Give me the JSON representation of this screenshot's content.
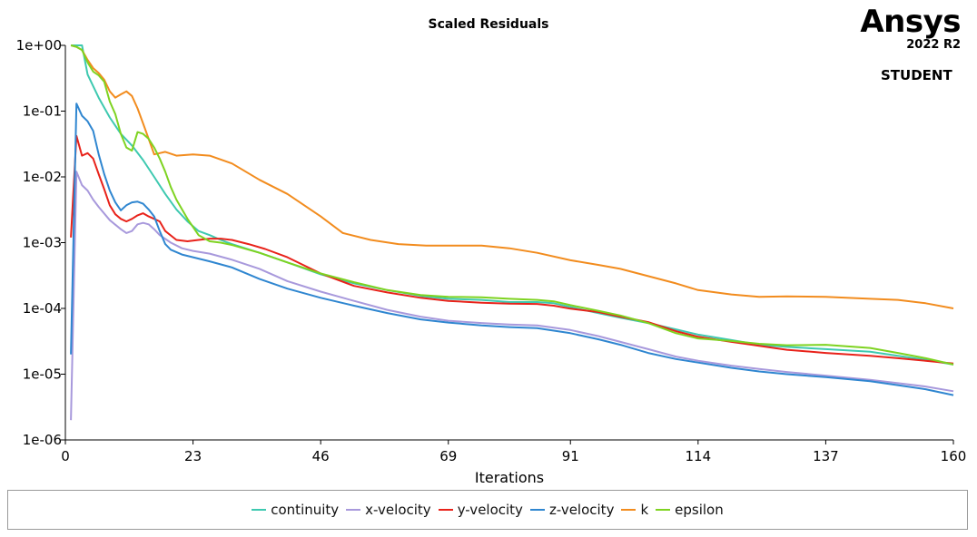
{
  "brand": {
    "name": "Ansys",
    "version": "2022 R2",
    "edition": "STUDENT"
  },
  "chart_data": {
    "type": "line",
    "title": "Scaled Residuals",
    "xlabel": "Iterations",
    "ylabel": "",
    "y_scale": "log",
    "xlim": [
      0,
      160
    ],
    "ylim": [
      1e-06,
      1
    ],
    "x_ticks": [
      0,
      23,
      46,
      69,
      91,
      114,
      137,
      160
    ],
    "y_ticks": [
      1e-06,
      1e-05,
      0.0001,
      0.001,
      0.01,
      0.1,
      1
    ],
    "y_tick_labels": [
      "1e-06",
      "1e-05",
      "1e-04",
      "1e-03",
      "1e-02",
      "1e-01",
      "1e+00"
    ],
    "grid": false,
    "legend_position": "bottom",
    "series": [
      {
        "name": "continuity",
        "color": "#3ec9b0",
        "points": [
          [
            1,
            1
          ],
          [
            2,
            1
          ],
          [
            3,
            1
          ],
          [
            4,
            0.36
          ],
          [
            6,
            0.16
          ],
          [
            8,
            0.08
          ],
          [
            10,
            0.045
          ],
          [
            12,
            0.03
          ],
          [
            14,
            0.018
          ],
          [
            16,
            0.01
          ],
          [
            18,
            0.0055
          ],
          [
            20,
            0.0032
          ],
          [
            22,
            0.0021
          ],
          [
            24,
            0.0015
          ],
          [
            26,
            0.0013
          ],
          [
            28,
            0.0011
          ],
          [
            30,
            0.00095
          ],
          [
            35,
            0.0007
          ],
          [
            40,
            0.0005
          ],
          [
            46,
            0.00033
          ],
          [
            52,
            0.00024
          ],
          [
            58,
            0.00019
          ],
          [
            64,
            0.000155
          ],
          [
            69,
            0.00014
          ],
          [
            75,
            0.000135
          ],
          [
            80,
            0.000125
          ],
          [
            85,
            0.000125
          ],
          [
            88,
            0.00012
          ],
          [
            91,
            0.000105
          ],
          [
            96,
            8.5e-05
          ],
          [
            100,
            7.2e-05
          ],
          [
            105,
            6e-05
          ],
          [
            110,
            4.8e-05
          ],
          [
            114,
            4e-05
          ],
          [
            120,
            3.3e-05
          ],
          [
            125,
            2.8e-05
          ],
          [
            130,
            2.6e-05
          ],
          [
            137,
            2.4e-05
          ],
          [
            145,
            2.2e-05
          ],
          [
            150,
            1.9e-05
          ],
          [
            155,
            1.65e-05
          ],
          [
            160,
            1.4e-05
          ]
        ]
      },
      {
        "name": "x-velocity",
        "color": "#a899dc",
        "points": [
          [
            1,
            2e-06
          ],
          [
            2,
            0.012
          ],
          [
            3,
            0.0075
          ],
          [
            4,
            0.0062
          ],
          [
            5,
            0.0045
          ],
          [
            6,
            0.0035
          ],
          [
            8,
            0.0022
          ],
          [
            10,
            0.0016
          ],
          [
            11,
            0.0014
          ],
          [
            12,
            0.0015
          ],
          [
            13,
            0.0019
          ],
          [
            14,
            0.002
          ],
          [
            15,
            0.0019
          ],
          [
            16,
            0.0016
          ],
          [
            17,
            0.0013
          ],
          [
            19,
            0.001
          ],
          [
            21,
            0.00082
          ],
          [
            23,
            0.00075
          ],
          [
            26,
            0.00068
          ],
          [
            30,
            0.00055
          ],
          [
            35,
            0.0004
          ],
          [
            40,
            0.00026
          ],
          [
            46,
            0.00018
          ],
          [
            52,
            0.00013
          ],
          [
            58,
            9.5e-05
          ],
          [
            64,
            7.5e-05
          ],
          [
            69,
            6.5e-05
          ],
          [
            75,
            6e-05
          ],
          [
            80,
            5.7e-05
          ],
          [
            85,
            5.5e-05
          ],
          [
            88,
            5.1e-05
          ],
          [
            91,
            4.7e-05
          ],
          [
            96,
            3.8e-05
          ],
          [
            100,
            3.1e-05
          ],
          [
            105,
            2.4e-05
          ],
          [
            110,
            1.85e-05
          ],
          [
            114,
            1.6e-05
          ],
          [
            120,
            1.35e-05
          ],
          [
            125,
            1.2e-05
          ],
          [
            130,
            1.08e-05
          ],
          [
            137,
            9.5e-06
          ],
          [
            145,
            8.2e-06
          ],
          [
            150,
            7.3e-06
          ],
          [
            155,
            6.5e-06
          ],
          [
            160,
            5.5e-06
          ]
        ]
      },
      {
        "name": "y-velocity",
        "color": "#e8221a",
        "points": [
          [
            1,
            0.0012
          ],
          [
            2,
            0.042
          ],
          [
            3,
            0.021
          ],
          [
            4,
            0.023
          ],
          [
            5,
            0.019
          ],
          [
            6,
            0.011
          ],
          [
            7,
            0.0065
          ],
          [
            8,
            0.0037
          ],
          [
            9,
            0.0027
          ],
          [
            10,
            0.0023
          ],
          [
            11,
            0.0021
          ],
          [
            12,
            0.0023
          ],
          [
            13,
            0.0026
          ],
          [
            14,
            0.0028
          ],
          [
            15,
            0.0025
          ],
          [
            16,
            0.0023
          ],
          [
            17,
            0.0021
          ],
          [
            18,
            0.0015
          ],
          [
            20,
            0.0011
          ],
          [
            22,
            0.00105
          ],
          [
            24,
            0.0011
          ],
          [
            26,
            0.00115
          ],
          [
            28,
            0.00115
          ],
          [
            30,
            0.0011
          ],
          [
            33,
            0.00095
          ],
          [
            36,
            0.0008
          ],
          [
            40,
            0.0006
          ],
          [
            46,
            0.00034
          ],
          [
            52,
            0.00022
          ],
          [
            58,
            0.000175
          ],
          [
            64,
            0.000145
          ],
          [
            69,
            0.00013
          ],
          [
            75,
            0.000122
          ],
          [
            80,
            0.000118
          ],
          [
            85,
            0.000117
          ],
          [
            88,
            0.00011
          ],
          [
            91,
            9.9e-05
          ],
          [
            96,
            8.8e-05
          ],
          [
            100,
            7.5e-05
          ],
          [
            105,
            6.2e-05
          ],
          [
            110,
            4.5e-05
          ],
          [
            114,
            3.7e-05
          ],
          [
            120,
            3.1e-05
          ],
          [
            125,
            2.7e-05
          ],
          [
            130,
            2.35e-05
          ],
          [
            137,
            2.1e-05
          ],
          [
            145,
            1.9e-05
          ],
          [
            150,
            1.75e-05
          ],
          [
            155,
            1.6e-05
          ],
          [
            160,
            1.45e-05
          ]
        ]
      },
      {
        "name": "z-velocity",
        "color": "#2f86d0",
        "points": [
          [
            1,
            2e-05
          ],
          [
            2,
            0.13
          ],
          [
            3,
            0.085
          ],
          [
            4,
            0.07
          ],
          [
            5,
            0.05
          ],
          [
            6,
            0.022
          ],
          [
            7,
            0.011
          ],
          [
            8,
            0.0062
          ],
          [
            9,
            0.0041
          ],
          [
            10,
            0.0031
          ],
          [
            11,
            0.0037
          ],
          [
            12,
            0.0041
          ],
          [
            13,
            0.0042
          ],
          [
            14,
            0.0039
          ],
          [
            15,
            0.0032
          ],
          [
            16,
            0.0025
          ],
          [
            17,
            0.0015
          ],
          [
            18,
            0.00095
          ],
          [
            19,
            0.00078
          ],
          [
            21,
            0.00066
          ],
          [
            23,
            0.0006
          ],
          [
            26,
            0.00052
          ],
          [
            30,
            0.00042
          ],
          [
            35,
            0.00028
          ],
          [
            40,
            0.0002
          ],
          [
            46,
            0.000145
          ],
          [
            52,
            0.00011
          ],
          [
            58,
            8.5e-05
          ],
          [
            64,
            6.8e-05
          ],
          [
            69,
            6.1e-05
          ],
          [
            75,
            5.5e-05
          ],
          [
            80,
            5.2e-05
          ],
          [
            85,
            5e-05
          ],
          [
            88,
            4.6e-05
          ],
          [
            91,
            4.2e-05
          ],
          [
            96,
            3.4e-05
          ],
          [
            100,
            2.8e-05
          ],
          [
            105,
            2.1e-05
          ],
          [
            110,
            1.7e-05
          ],
          [
            114,
            1.5e-05
          ],
          [
            120,
            1.25e-05
          ],
          [
            125,
            1.1e-05
          ],
          [
            130,
            1e-05
          ],
          [
            137,
            9e-06
          ],
          [
            145,
            7.8e-06
          ],
          [
            150,
            6.8e-06
          ],
          [
            155,
            5.9e-06
          ],
          [
            160,
            4.8e-06
          ]
        ]
      },
      {
        "name": "k",
        "color": "#f28c1e",
        "points": [
          [
            1,
            1
          ],
          [
            2,
            0.95
          ],
          [
            3,
            0.85
          ],
          [
            4,
            0.6
          ],
          [
            5,
            0.45
          ],
          [
            6,
            0.38
          ],
          [
            7,
            0.3
          ],
          [
            8,
            0.2
          ],
          [
            9,
            0.16
          ],
          [
            10,
            0.18
          ],
          [
            11,
            0.2
          ],
          [
            12,
            0.17
          ],
          [
            13,
            0.11
          ],
          [
            14,
            0.065
          ],
          [
            15,
            0.038
          ],
          [
            16,
            0.022
          ],
          [
            17,
            0.023
          ],
          [
            18,
            0.024
          ],
          [
            20,
            0.021
          ],
          [
            23,
            0.022
          ],
          [
            26,
            0.021
          ],
          [
            30,
            0.016
          ],
          [
            35,
            0.009
          ],
          [
            40,
            0.0055
          ],
          [
            46,
            0.0025
          ],
          [
            50,
            0.0014
          ],
          [
            55,
            0.0011
          ],
          [
            60,
            0.00095
          ],
          [
            65,
            0.0009
          ],
          [
            69,
            0.0009
          ],
          [
            75,
            0.0009
          ],
          [
            80,
            0.00082
          ],
          [
            85,
            0.0007
          ],
          [
            91,
            0.00054
          ],
          [
            96,
            0.00046
          ],
          [
            100,
            0.0004
          ],
          [
            105,
            0.00031
          ],
          [
            110,
            0.00024
          ],
          [
            114,
            0.00019
          ],
          [
            120,
            0.000163
          ],
          [
            125,
            0.00015
          ],
          [
            130,
            0.000152
          ],
          [
            137,
            0.00015
          ],
          [
            145,
            0.00014
          ],
          [
            150,
            0.000135
          ],
          [
            155,
            0.00012
          ],
          [
            160,
            0.0001
          ]
        ]
      },
      {
        "name": "epsilon",
        "color": "#7ed321",
        "points": [
          [
            1,
            1
          ],
          [
            2,
            0.95
          ],
          [
            3,
            0.85
          ],
          [
            4,
            0.55
          ],
          [
            5,
            0.4
          ],
          [
            6,
            0.35
          ],
          [
            7,
            0.28
          ],
          [
            8,
            0.14
          ],
          [
            9,
            0.09
          ],
          [
            10,
            0.045
          ],
          [
            11,
            0.028
          ],
          [
            12,
            0.025
          ],
          [
            13,
            0.048
          ],
          [
            14,
            0.045
          ],
          [
            15,
            0.038
          ],
          [
            16,
            0.028
          ],
          [
            17,
            0.019
          ],
          [
            18,
            0.012
          ],
          [
            19,
            0.007
          ],
          [
            20,
            0.0045
          ],
          [
            22,
            0.0023
          ],
          [
            24,
            0.0013
          ],
          [
            26,
            0.00105
          ],
          [
            28,
            0.001
          ],
          [
            30,
            0.00092
          ],
          [
            35,
            0.0007
          ],
          [
            40,
            0.0005
          ],
          [
            46,
            0.00034
          ],
          [
            52,
            0.00025
          ],
          [
            58,
            0.00019
          ],
          [
            64,
            0.00016
          ],
          [
            69,
            0.00015
          ],
          [
            75,
            0.000148
          ],
          [
            80,
            0.00014
          ],
          [
            85,
            0.000135
          ],
          [
            88,
            0.000128
          ],
          [
            91,
            0.000112
          ],
          [
            96,
            9.2e-05
          ],
          [
            100,
            7.8e-05
          ],
          [
            105,
            6e-05
          ],
          [
            110,
            4.2e-05
          ],
          [
            114,
            3.5e-05
          ],
          [
            120,
            3.2e-05
          ],
          [
            125,
            2.9e-05
          ],
          [
            130,
            2.75e-05
          ],
          [
            137,
            2.8e-05
          ],
          [
            145,
            2.5e-05
          ],
          [
            150,
            2.1e-05
          ],
          [
            155,
            1.75e-05
          ],
          [
            160,
            1.4e-05
          ]
        ]
      }
    ]
  }
}
